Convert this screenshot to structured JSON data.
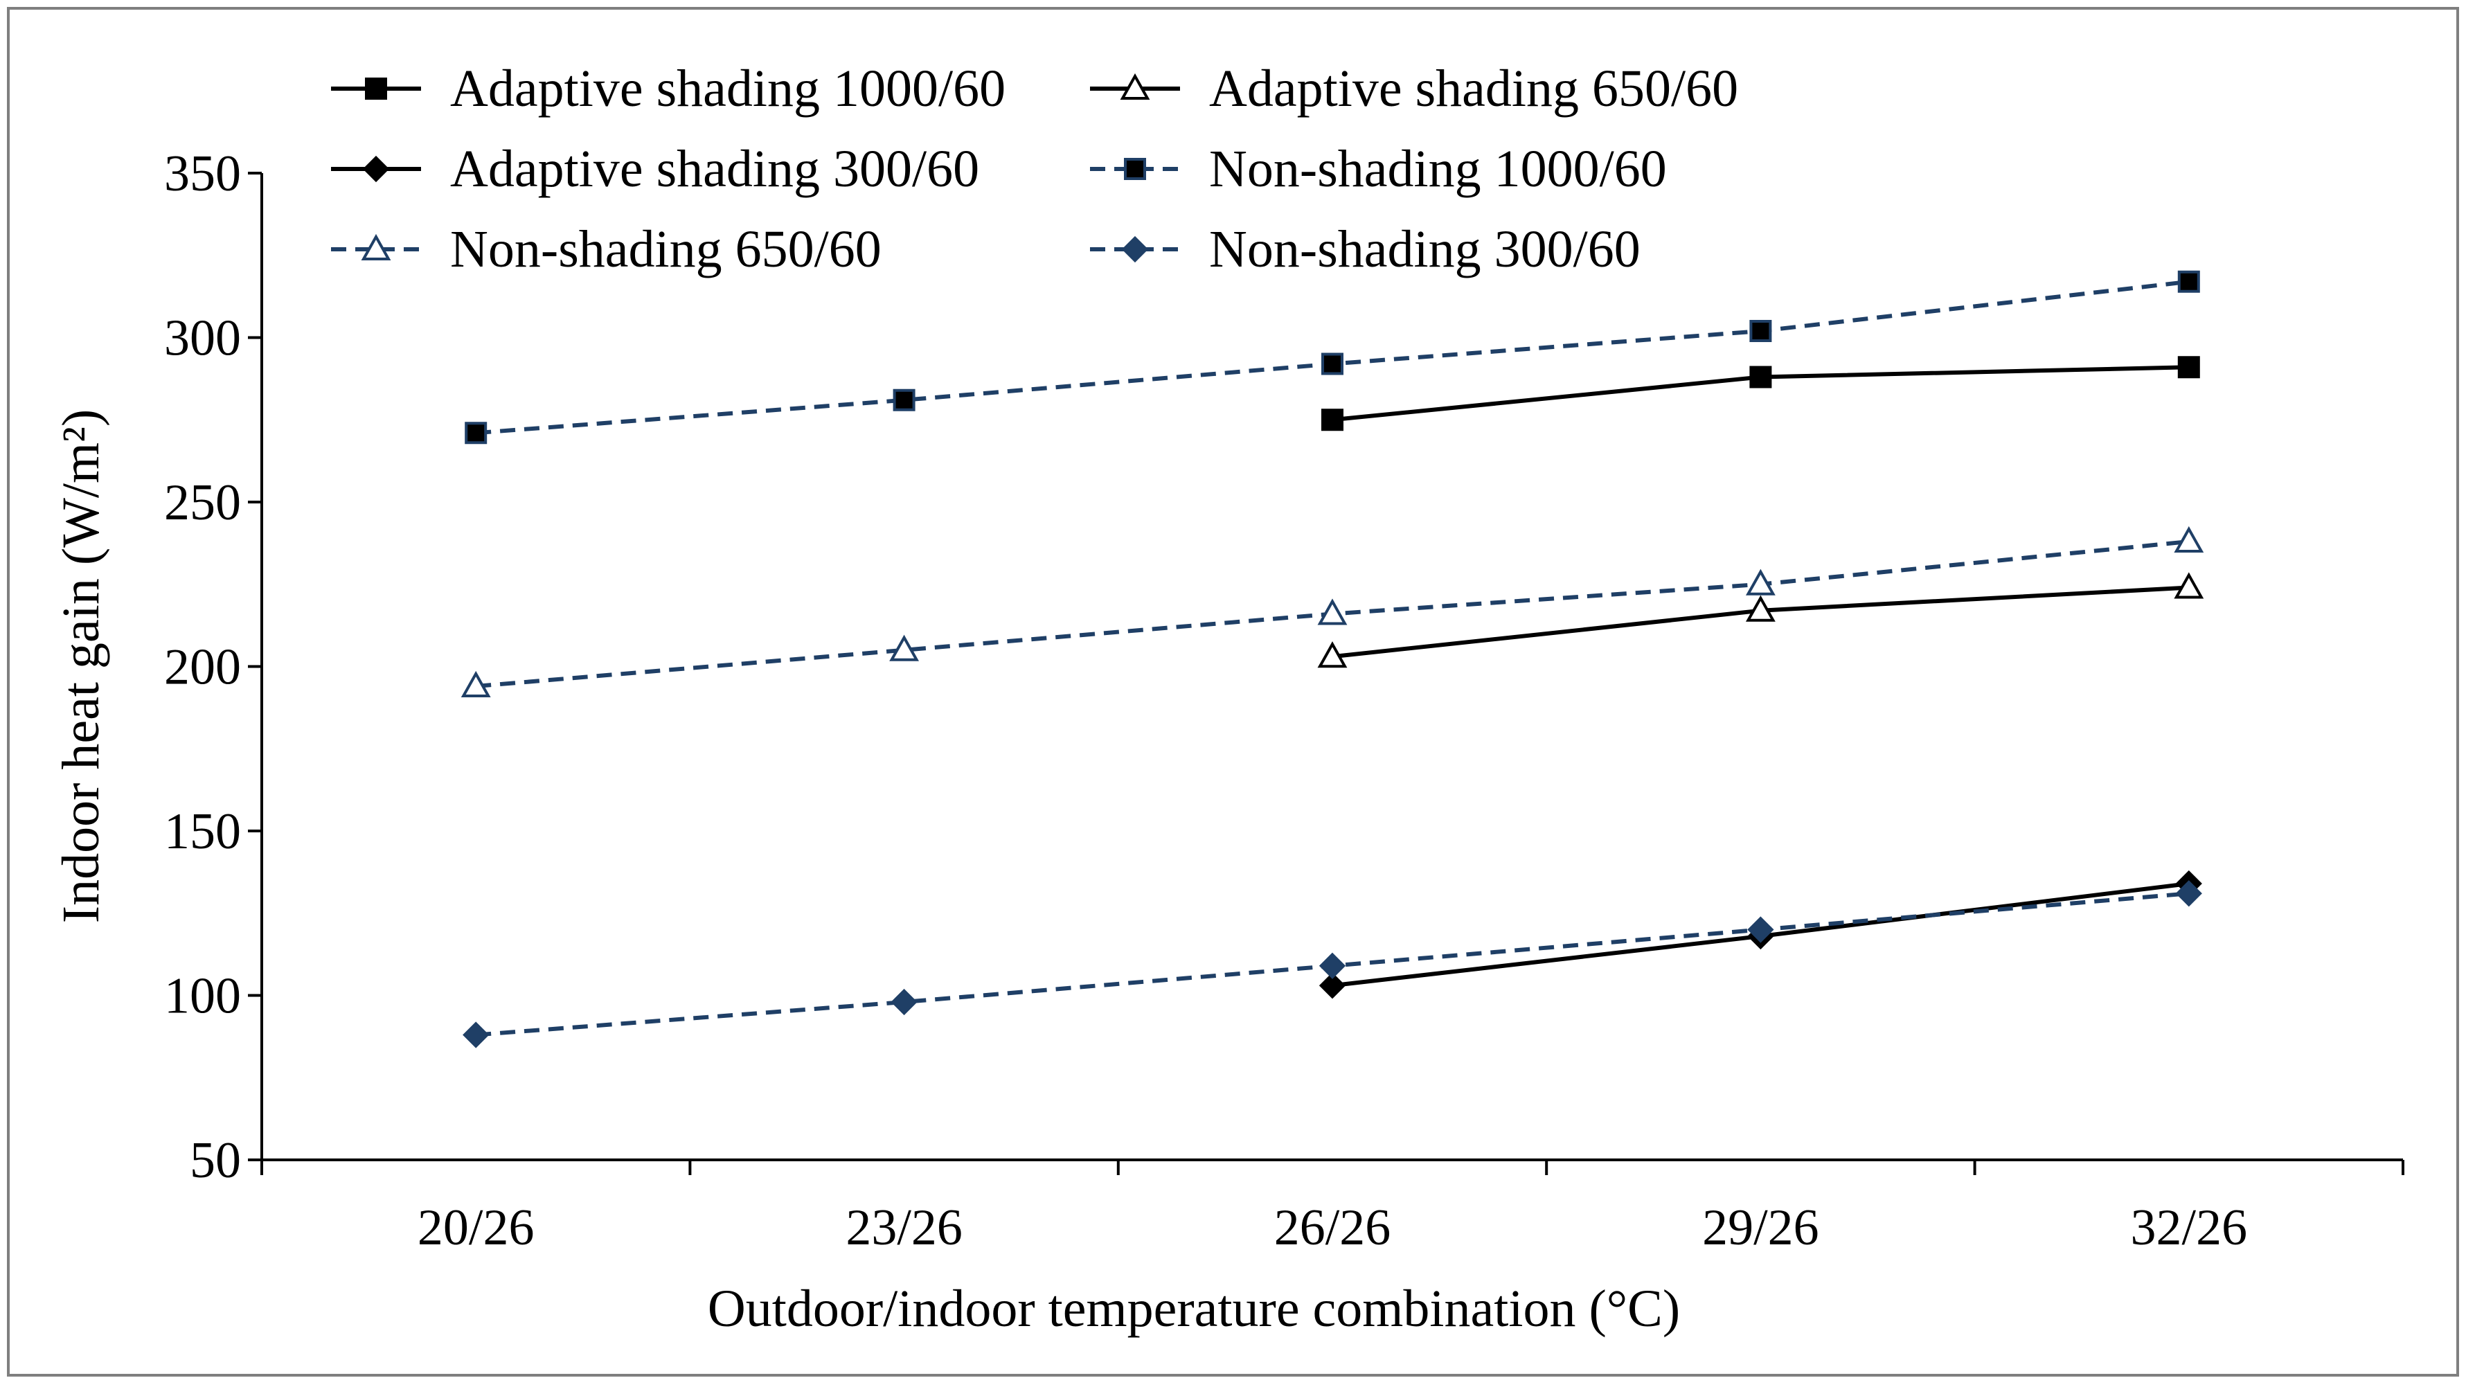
{
  "chart_data": {
    "type": "line",
    "title": "",
    "xlabel": "Outdoor/indoor temperature combination (°C)",
    "ylabel": "Indoor heat gain (W/m²)",
    "categories": [
      "20/26",
      "23/26",
      "26/26",
      "29/26",
      "32/26"
    ],
    "ylim": [
      50,
      350
    ],
    "yticks": [
      50,
      100,
      150,
      200,
      250,
      300,
      350
    ],
    "grid": false,
    "legend_position": "top",
    "series": [
      {
        "name": "Adaptive shading 1000/60",
        "values": [
          null,
          null,
          275,
          288,
          291
        ],
        "line": "solid",
        "marker": "square",
        "color": "#000000",
        "fill": "#000000"
      },
      {
        "name": "Adaptive shading 650/60",
        "values": [
          null,
          null,
          203,
          217,
          224
        ],
        "line": "solid",
        "marker": "triangle-open",
        "color": "#000000",
        "fill": "#ffffff"
      },
      {
        "name": "Adaptive shading 300/60",
        "values": [
          null,
          null,
          103,
          118,
          134
        ],
        "line": "solid",
        "marker": "diamond",
        "color": "#000000",
        "fill": "#000000"
      },
      {
        "name": "Non-shading 1000/60",
        "values": [
          271,
          281,
          292,
          302,
          317
        ],
        "line": "dashed",
        "marker": "square",
        "color": "#1f3f66",
        "fill": "#000000"
      },
      {
        "name": "Non-shading 650/60",
        "values": [
          194,
          205,
          216,
          225,
          238
        ],
        "line": "dashed",
        "marker": "triangle-open",
        "color": "#1f3f66",
        "fill": "#ffffff"
      },
      {
        "name": "Non-shading 300/60",
        "values": [
          88,
          98,
          109,
          120,
          131
        ],
        "line": "dashed",
        "marker": "diamond",
        "color": "#1f3f66",
        "fill": "#1f3f66"
      }
    ]
  }
}
